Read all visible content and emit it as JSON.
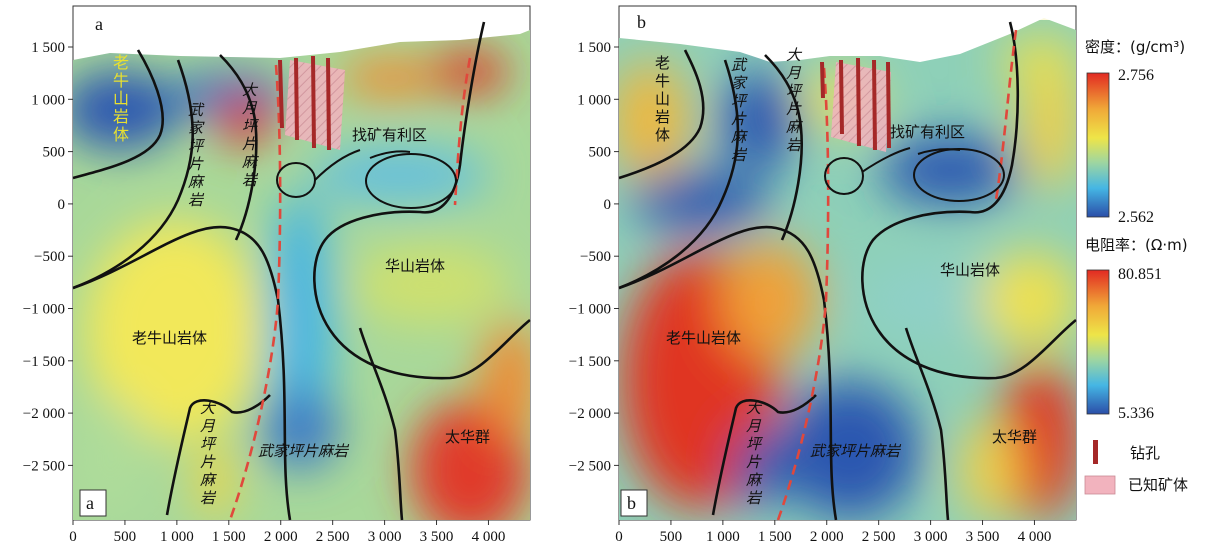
{
  "panels": [
    {
      "id": "a",
      "corner_label": "a",
      "bottom_label": "a",
      "labels": {
        "laoniushan_top": "老牛山岩体",
        "wujiaping_top": "武家坪片麻岩",
        "dayueping_top": "大月坪片麻岩",
        "target_zone": "找矿有利区",
        "huashan": "华山岩体",
        "laoniushan_bottom": "老牛山岩体",
        "dayueping_bottom": "大月坪片麻岩",
        "wujiaping_bottom": "武家坪片麻岩",
        "taihua": "太华群"
      }
    },
    {
      "id": "b",
      "corner_label": "b",
      "bottom_label": "b",
      "labels": {
        "laoniushan_top": "老牛山岩体",
        "wujiaping_top": "武家坪片麻岩",
        "dayueping_top": "大月坪片麻岩",
        "target_zone": "找矿有利区",
        "huashan": "华山岩体",
        "laoniushan_bottom": "老牛山岩体",
        "dayueping_bottom": "大月坪片麻岩",
        "wujiaping_bottom": "武家坪片麻岩",
        "taihua": "太华群"
      }
    }
  ],
  "axes": {
    "x_ticks": [
      "0",
      "500",
      "1 000",
      "1 500",
      "2 000",
      "2 500",
      "3 000",
      "3 500",
      "4 000"
    ],
    "y_ticks": [
      "1 500",
      "1 000",
      "500",
      "0",
      "−500",
      "−1 000",
      "−1 500",
      "−2 000",
      "−2 500"
    ]
  },
  "legend": {
    "density": {
      "title": "密度：(g/cm³)",
      "max": "2.756",
      "min": "2.562"
    },
    "resistivity": {
      "title": "电阻率：(Ω·m)",
      "max": "80.851",
      "min": "5.336"
    },
    "drillhole": "钻孔",
    "orebody": "已知矿体"
  },
  "colors": {
    "cmap_low": "#2b4ea8",
    "cmap_mid_low": "#45b6e4",
    "cmap_mid": "#9fd6a0",
    "cmap_mid_high": "#eee548",
    "cmap_high": "#e4352a",
    "drillhole": "#a52828",
    "orebody": "#f2b3be",
    "fault": "#e0483c"
  }
}
